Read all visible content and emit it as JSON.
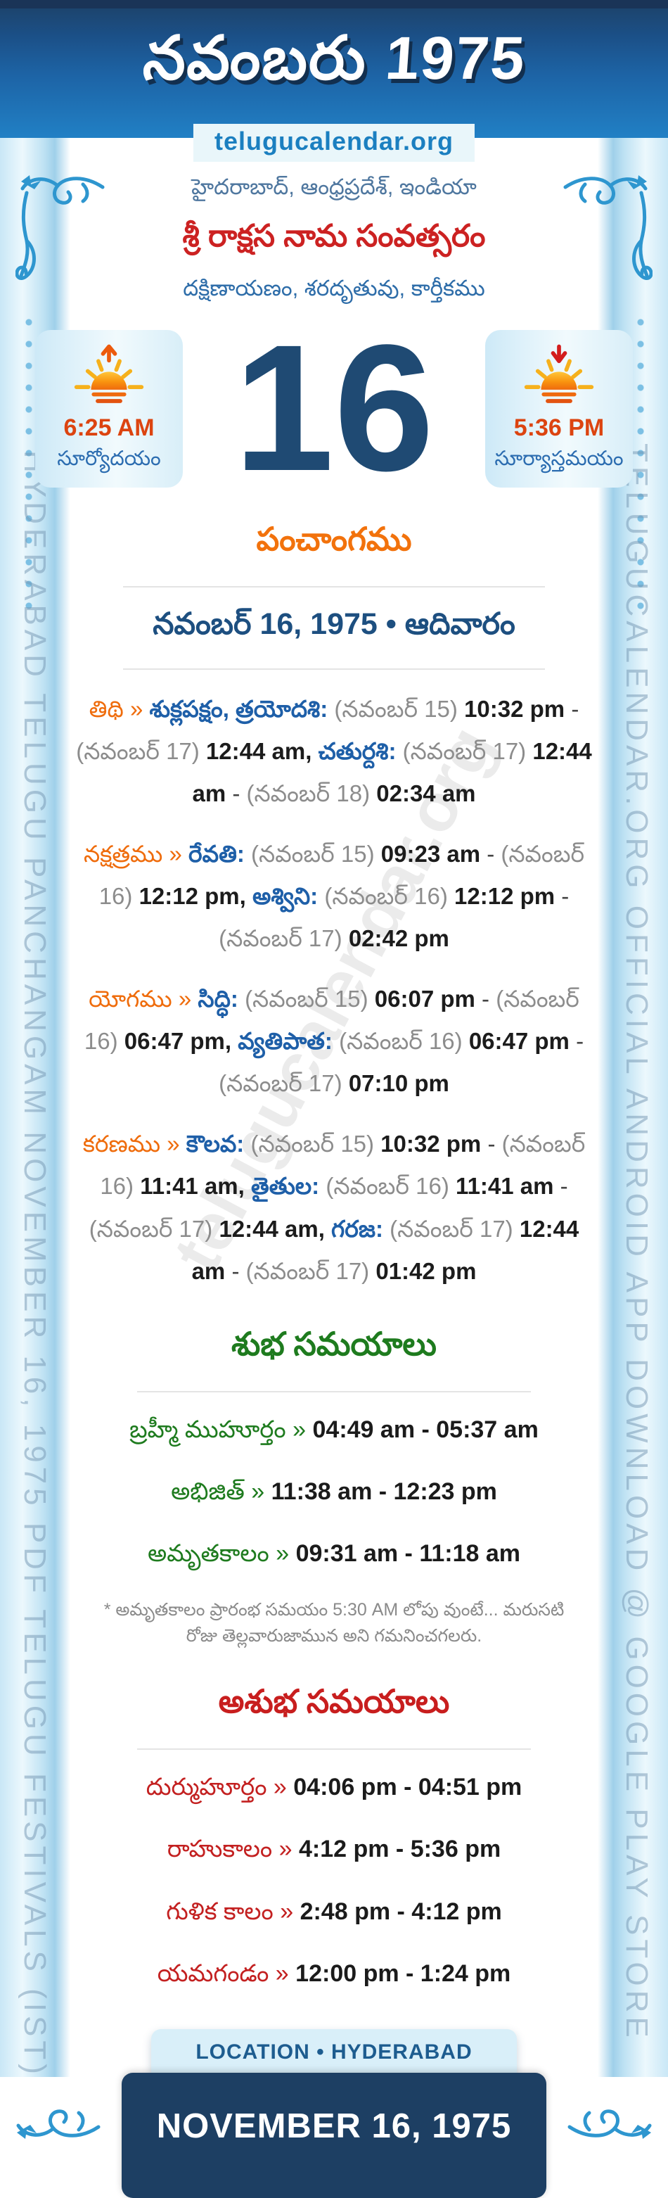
{
  "header": {
    "title": "నవంబరు 1975",
    "site": "telugucalendar.org"
  },
  "intro": {
    "place": "హైదరాబాద్, ఆంధ్రప్రదేశ్, ఇండియా",
    "samvatsaram": "శ్రీ రాక్షస నామ సంవత్సరం",
    "ayana": "దక్షిణాయణం, శరదృతువు, కార్తీకము"
  },
  "day": {
    "number": "16",
    "sunrise": {
      "time": "6:25 AM",
      "label": "సూర్యోదయం"
    },
    "sunset": {
      "time": "5:36 PM",
      "label": "సూర్యాస్తమయం"
    }
  },
  "panchangam": {
    "heading": "పంచాంగము",
    "date_line": "నవంబర్ 16, 1975 • ఆదివారం",
    "separator": "»",
    "items": [
      {
        "label": "తిథి",
        "segments": [
          {
            "t": "శుక్లపక్షం, త్రయోదశి:",
            "c": "v"
          },
          {
            "t": "(నవంబర్ 15)",
            "c": "p"
          },
          {
            "t": "10:32 pm",
            "c": "t"
          },
          {
            "t": "-",
            "c": "d"
          },
          {
            "t": "(నవంబర్ 17)",
            "c": "p"
          },
          {
            "t": "12:44 am,",
            "c": "t"
          },
          {
            "t": "చతుర్దశి:",
            "c": "v"
          },
          {
            "t": "(నవంబర్ 17)",
            "c": "p"
          },
          {
            "t": "12:44 am",
            "c": "t"
          },
          {
            "t": "-",
            "c": "d"
          },
          {
            "t": "(నవంబర్ 18)",
            "c": "p"
          },
          {
            "t": "02:34 am",
            "c": "t"
          }
        ]
      },
      {
        "label": "నక్షత్రము",
        "segments": [
          {
            "t": "రేవతి:",
            "c": "v"
          },
          {
            "t": "(నవంబర్ 15)",
            "c": "p"
          },
          {
            "t": "09:23 am",
            "c": "t"
          },
          {
            "t": "-",
            "c": "d"
          },
          {
            "t": "(నవంబర్ 16)",
            "c": "p"
          },
          {
            "t": "12:12 pm,",
            "c": "t"
          },
          {
            "t": "అశ్విని:",
            "c": "v"
          },
          {
            "t": "(నవంబర్ 16)",
            "c": "p"
          },
          {
            "t": "12:12 pm",
            "c": "t"
          },
          {
            "t": "-",
            "c": "d"
          },
          {
            "t": "(నవంబర్ 17)",
            "c": "p"
          },
          {
            "t": "02:42 pm",
            "c": "t"
          }
        ]
      },
      {
        "label": "యోగము",
        "segments": [
          {
            "t": "సిద్ధి:",
            "c": "v"
          },
          {
            "t": "(నవంబర్ 15)",
            "c": "p"
          },
          {
            "t": "06:07 pm",
            "c": "t"
          },
          {
            "t": "-",
            "c": "d"
          },
          {
            "t": "(నవంబర్ 16)",
            "c": "p"
          },
          {
            "t": "06:47 pm,",
            "c": "t"
          },
          {
            "t": "వ్యతిపాత:",
            "c": "v"
          },
          {
            "t": "(నవంబర్ 16)",
            "c": "p"
          },
          {
            "t": "06:47 pm",
            "c": "t"
          },
          {
            "t": "-",
            "c": "d"
          },
          {
            "t": "(నవంబర్ 17)",
            "c": "p"
          },
          {
            "t": "07:10 pm",
            "c": "t"
          }
        ]
      },
      {
        "label": "కరణము",
        "segments": [
          {
            "t": "కౌలవ:",
            "c": "v"
          },
          {
            "t": "(నవంబర్ 15)",
            "c": "p"
          },
          {
            "t": "10:32 pm",
            "c": "t"
          },
          {
            "t": "-",
            "c": "d"
          },
          {
            "t": "(నవంబర్ 16)",
            "c": "p"
          },
          {
            "t": "11:41 am,",
            "c": "t"
          },
          {
            "t": "తైతుల:",
            "c": "v"
          },
          {
            "t": "(నవంబర్ 16)",
            "c": "p"
          },
          {
            "t": "11:41 am",
            "c": "t"
          },
          {
            "t": "-",
            "c": "d"
          },
          {
            "t": "(నవంబర్ 17)",
            "c": "p"
          },
          {
            "t": "12:44 am,",
            "c": "t"
          },
          {
            "t": "గరజ:",
            "c": "v"
          },
          {
            "t": "(నవంబర్ 17)",
            "c": "p"
          },
          {
            "t": "12:44 am",
            "c": "t"
          },
          {
            "t": "-",
            "c": "d"
          },
          {
            "t": "(నవంబర్ 17)",
            "c": "p"
          },
          {
            "t": "01:42 pm",
            "c": "t"
          }
        ]
      }
    ]
  },
  "shubha": {
    "heading": "శుభ సమయాలు",
    "separator": "»",
    "items": [
      {
        "label": "బ్రహ్మీ ముహూర్తం",
        "time": "04:49 am - 05:37 am"
      },
      {
        "label": "అభిజిత్",
        "time": "11:38 am - 12:23 pm"
      },
      {
        "label": "అమృతకాలం",
        "time": "09:31 am - 11:18 am"
      }
    ],
    "note": "* అమృతకాలం ప్రారంభ సమయం 5:30 AM లోపు వుంటే... మరుసటి రోజు తెల్లవారుజామున అని గమనించగలరు."
  },
  "ashubha": {
    "heading": "అశుభ సమయాలు",
    "separator": "»",
    "items": [
      {
        "label": "దుర్ముహూర్తం",
        "time": "04:06 pm - 04:51 pm"
      },
      {
        "label": "రాహుకాలం",
        "time": "4:12 pm - 5:36 pm"
      },
      {
        "label": "గుళిక కాలం",
        "time": "2:48 pm - 4:12 pm"
      },
      {
        "label": "యమగండం",
        "time": "12:00 pm - 1:24 pm"
      }
    ]
  },
  "footer": {
    "location": "LOCATION • HYDERABAD",
    "date": "NOVEMBER 16, 1975"
  },
  "margins": {
    "left": "HYDERABAD TELUGU PANCHANGAM NOVEMBER 16, 1975 PDF TELUGU FESTIVALS (IST)",
    "right": "TELUGUCALENDAR.ORG OFFICIAL ANDROID APP DOWNLOAD @ GOOGLE PLAY STORE",
    "watermark": "telugucalendar.org"
  },
  "colors": {
    "header_blue": "#1d64a6",
    "navy": "#1d3f63",
    "date_number": "#1f4a73",
    "orange_label": "#ef6c0c",
    "blue_value": "#1e5fa8",
    "paren_gray": "#8c8c8c",
    "green": "#1e7b1e",
    "red": "#c32020",
    "sun_time": "#dc4410",
    "site_link": "#1b7fc0",
    "chip_bg": "#d9eff9"
  }
}
